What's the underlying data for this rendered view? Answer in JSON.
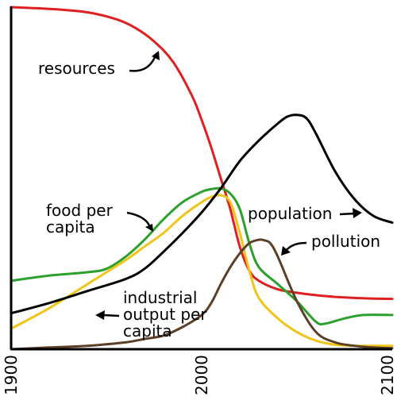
{
  "chart_data": {
    "type": "line",
    "title": "",
    "xlabel": "",
    "ylabel": "",
    "xlim": [
      1900,
      2100
    ],
    "ylim": [
      0,
      1
    ],
    "x_ticks": [
      1900,
      2000,
      2100
    ],
    "x_tick_labels": [
      "1900",
      "2000",
      "2100"
    ],
    "grid": false,
    "series": [
      {
        "name": "resources",
        "color": "#e02020",
        "x": [
          1900,
          1920,
          1940,
          1955,
          1965,
          1975,
          1985,
          1995,
          2000,
          2005,
          2010,
          2015,
          2020,
          2025,
          2030,
          2040,
          2050,
          2060,
          2070,
          2080,
          2090,
          2100
        ],
        "y": [
          1.0,
          0.995,
          0.985,
          0.965,
          0.94,
          0.9,
          0.84,
          0.74,
          0.67,
          0.59,
          0.5,
          0.41,
          0.3,
          0.23,
          0.2,
          0.175,
          0.165,
          0.158,
          0.153,
          0.15,
          0.148,
          0.147
        ]
      },
      {
        "name": "food per capita",
        "color": "#2ca02c",
        "x": [
          1900,
          1920,
          1940,
          1950,
          1960,
          1970,
          1980,
          1990,
          2000,
          2005,
          2010,
          2015,
          2020,
          2025,
          2030,
          2040,
          2050,
          2060,
          2065,
          2075,
          2085,
          2100
        ],
        "y": [
          0.2,
          0.215,
          0.225,
          0.235,
          0.27,
          0.32,
          0.38,
          0.43,
          0.46,
          0.468,
          0.47,
          0.455,
          0.41,
          0.31,
          0.24,
          0.19,
          0.14,
          0.08,
          0.075,
          0.09,
          0.1,
          0.1
        ]
      },
      {
        "name": "industrial output per capita",
        "color": "#f0c418",
        "x": [
          1900,
          1920,
          1940,
          1960,
          1970,
          1980,
          1990,
          2000,
          2005,
          2010,
          2015,
          2020,
          2025,
          2030,
          2040,
          2050,
          2060,
          2070,
          2080,
          2090,
          2100
        ],
        "y": [
          0.06,
          0.12,
          0.19,
          0.26,
          0.3,
          0.34,
          0.39,
          0.43,
          0.445,
          0.45,
          0.43,
          0.34,
          0.23,
          0.15,
          0.09,
          0.05,
          0.025,
          0.013,
          0.01,
          0.01,
          0.01
        ]
      },
      {
        "name": "population",
        "color": "#000000",
        "x": [
          1900,
          1920,
          1940,
          1960,
          1970,
          1980,
          1990,
          2000,
          2010,
          2020,
          2030,
          2040,
          2045,
          2050,
          2055,
          2060,
          2070,
          2080,
          2090,
          2100
        ],
        "y": [
          0.105,
          0.135,
          0.17,
          0.205,
          0.235,
          0.285,
          0.34,
          0.4,
          0.47,
          0.55,
          0.61,
          0.66,
          0.68,
          0.685,
          0.675,
          0.63,
          0.52,
          0.44,
          0.39,
          0.37
        ]
      },
      {
        "name": "pollution",
        "color": "#5a4028",
        "x": [
          1900,
          1920,
          1940,
          1960,
          1970,
          1980,
          1990,
          2000,
          2005,
          2010,
          2015,
          2020,
          2025,
          2030,
          2033,
          2036,
          2040,
          2050,
          2060,
          2070,
          2080,
          2090,
          2100
        ],
        "y": [
          0.0,
          0.005,
          0.01,
          0.02,
          0.03,
          0.04,
          0.065,
          0.1,
          0.135,
          0.19,
          0.24,
          0.28,
          0.31,
          0.32,
          0.318,
          0.31,
          0.27,
          0.14,
          0.05,
          0.02,
          0.01,
          0.005,
          0.003
        ]
      }
    ],
    "annotations": [
      {
        "text": [
          "resources"
        ],
        "series": "resources"
      },
      {
        "text": [
          "food per",
          "capita"
        ],
        "series": "food per capita"
      },
      {
        "text": [
          "industrial",
          "output per",
          "capita"
        ],
        "series": "industrial output per capita"
      },
      {
        "text": [
          "population"
        ],
        "series": "population"
      },
      {
        "text": [
          "pollution"
        ],
        "series": "pollution"
      }
    ]
  }
}
